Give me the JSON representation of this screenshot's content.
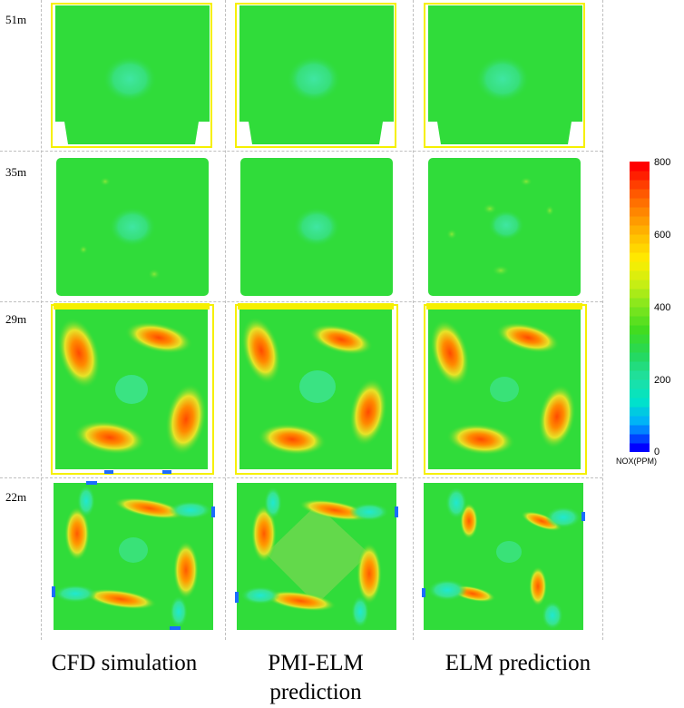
{
  "rows": [
    {
      "label": "51m"
    },
    {
      "label": "35m"
    },
    {
      "label": "29m"
    },
    {
      "label": "22m"
    }
  ],
  "columns": [
    {
      "title": "CFD simulation"
    },
    {
      "title": "PMI-ELM",
      "title2": "prediction"
    },
    {
      "title": "ELM prediction"
    }
  ],
  "colorbar": {
    "unit": "NOX(PPM)",
    "ticks": [
      "800",
      "600",
      "400",
      "200",
      "0"
    ],
    "min": 0,
    "max": 800,
    "colors": [
      "#0000ff",
      "#00aaff",
      "#00e5c8",
      "#20e0a0",
      "#25d85a",
      "#40dc20",
      "#7fe61e",
      "#c8ee14",
      "#ffee00",
      "#ffc000",
      "#ff8a00",
      "#ff5000",
      "#ff0000"
    ]
  },
  "field_colors": {
    "background": "#30dc3a",
    "cool_spot": "#3fe6a2",
    "hot_core": "#ff6a00",
    "hot_edge": "#f0e030",
    "edge_yellow": "#f6f000",
    "inlet_blue": "#1b6cff"
  }
}
